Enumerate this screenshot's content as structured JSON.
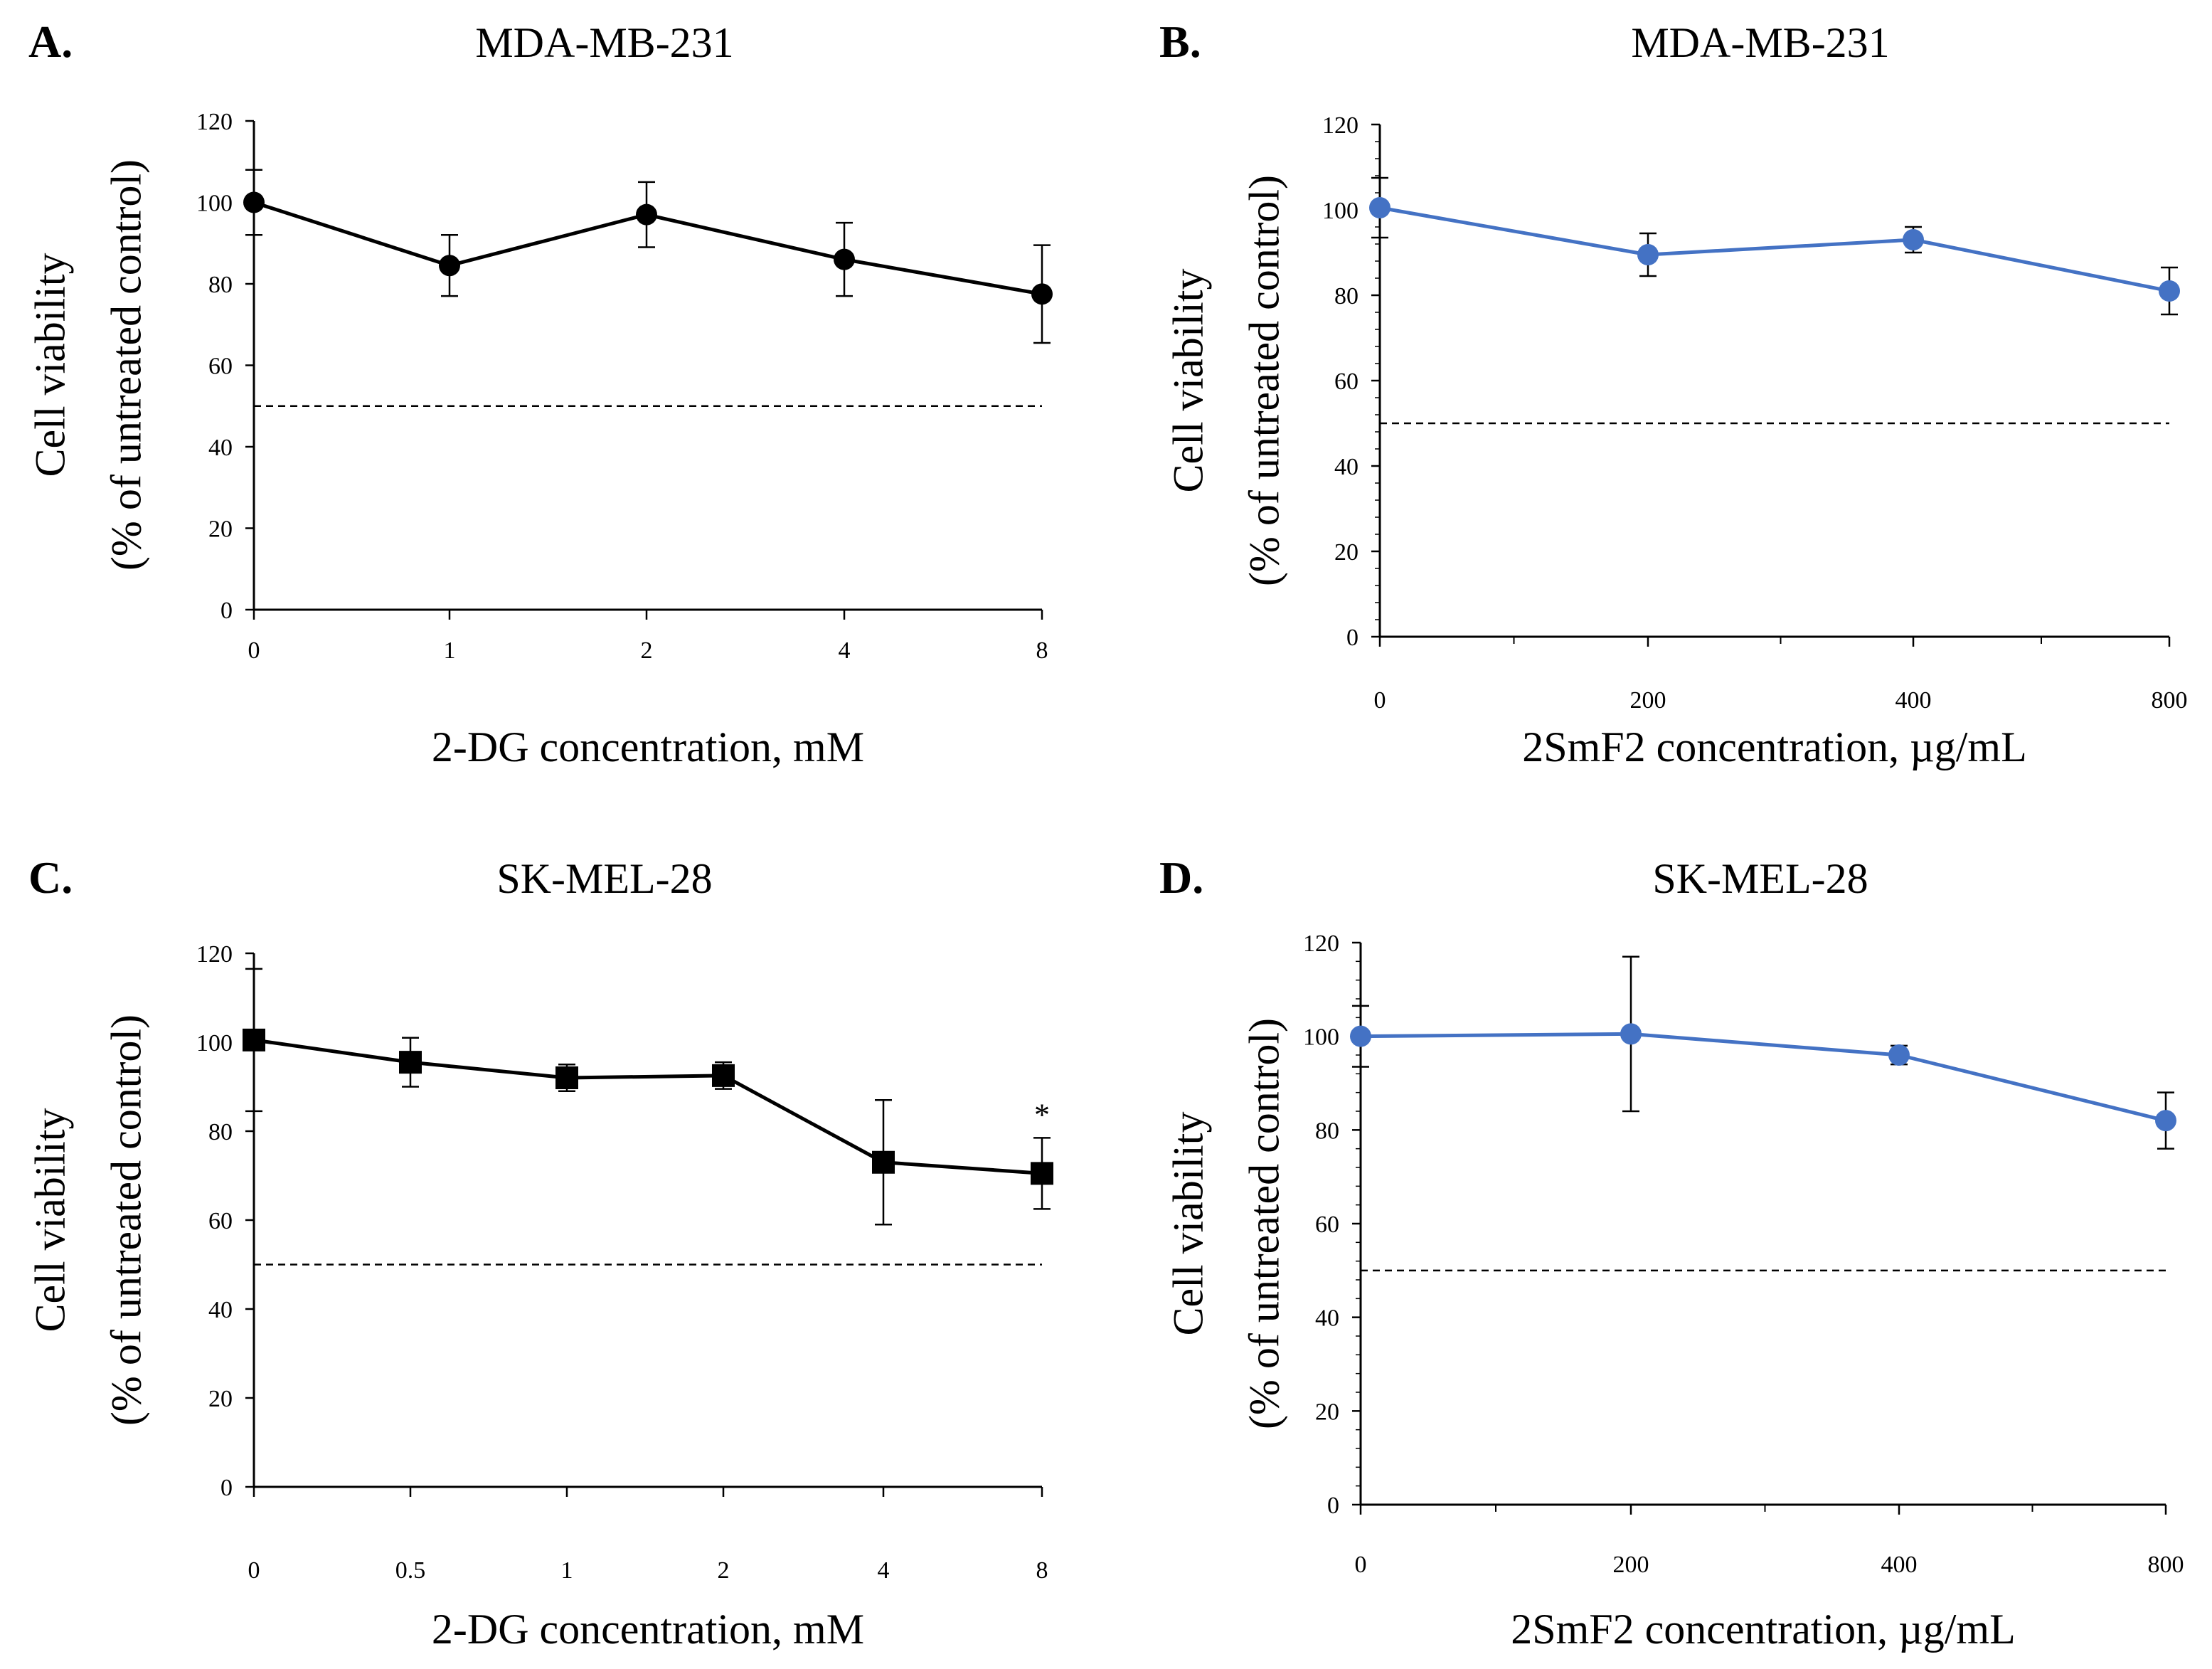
{
  "colors": {
    "black_series": "#000000",
    "blue_series": "#4472C4",
    "reference": "#000000"
  },
  "chart_data": [
    {
      "panel": "A.",
      "type": "line",
      "title": "MDA-MB-231",
      "xlabel": "2-DG concentration, mM",
      "ylabel_line1": "Cell viability",
      "ylabel_line2": "(% of untreated control)",
      "categories": [
        "0",
        "1",
        "2",
        "4",
        "8"
      ],
      "yticks": [
        "0",
        "20",
        "40",
        "60",
        "80",
        "100",
        "120"
      ],
      "ylim": [
        0,
        120
      ],
      "grid": false,
      "reference_line": 50,
      "marker": "circle",
      "color": "#000000",
      "series": [
        {
          "name": "2-DG",
          "values": [
            100,
            84.5,
            97,
            86,
            77.5
          ],
          "errors": [
            8,
            7.5,
            8,
            9,
            12
          ]
        }
      ],
      "annotations": []
    },
    {
      "panel": "B.",
      "type": "line",
      "title": "MDA-MB-231",
      "xlabel": "2SmF2 concentration, µg/mL",
      "ylabel_line1": "Cell viability",
      "ylabel_line2": "(% of untreated control)",
      "categories": [
        "0",
        "200",
        "400",
        "800"
      ],
      "yticks": [
        "0",
        "20",
        "40",
        "60",
        "80",
        "100",
        "120"
      ],
      "ylim": [
        0,
        120
      ],
      "grid": false,
      "reference_line": 50,
      "marker": "circle",
      "color": "#4472C4",
      "series": [
        {
          "name": "2SmF2",
          "values": [
            100.5,
            89.5,
            93,
            81
          ],
          "errors": [
            7,
            5,
            3,
            5.5
          ]
        }
      ],
      "annotations": []
    },
    {
      "panel": "C.",
      "type": "line",
      "title": "SK-MEL-28",
      "xlabel": "2-DG concentration, mM",
      "ylabel_line1": "Cell viability",
      "ylabel_line2": "(% of untreated control)",
      "categories": [
        "0",
        "0.5",
        "1",
        "2",
        "4",
        "8"
      ],
      "yticks": [
        "0",
        "20",
        "40",
        "60",
        "80",
        "100",
        "120"
      ],
      "ylim": [
        0,
        120
      ],
      "grid": false,
      "reference_line": 50,
      "marker": "square",
      "color": "#000000",
      "series": [
        {
          "name": "2-DG",
          "values": [
            100.5,
            95.5,
            92,
            92.5,
            73,
            70.5
          ],
          "errors": [
            16,
            5.5,
            3,
            3,
            14,
            8
          ]
        }
      ],
      "annotations": [
        {
          "text": "*",
          "category": "8"
        }
      ]
    },
    {
      "panel": "D.",
      "type": "line",
      "title": "SK-MEL-28",
      "xlabel": "2SmF2 concentration, µg/mL",
      "ylabel_line1": "Cell viability",
      "ylabel_line2": "(% of untreated control)",
      "categories": [
        "0",
        "200",
        "400",
        "800"
      ],
      "yticks": [
        "0",
        "20",
        "40",
        "60",
        "80",
        "100",
        "120"
      ],
      "ylim": [
        0,
        120
      ],
      "grid": false,
      "reference_line": 50,
      "marker": "circle",
      "color": "#4472C4",
      "series": [
        {
          "name": "2SmF2",
          "values": [
            100,
            100.5,
            96,
            82
          ],
          "errors": [
            6.5,
            16.5,
            2,
            6
          ]
        }
      ],
      "annotations": []
    }
  ]
}
